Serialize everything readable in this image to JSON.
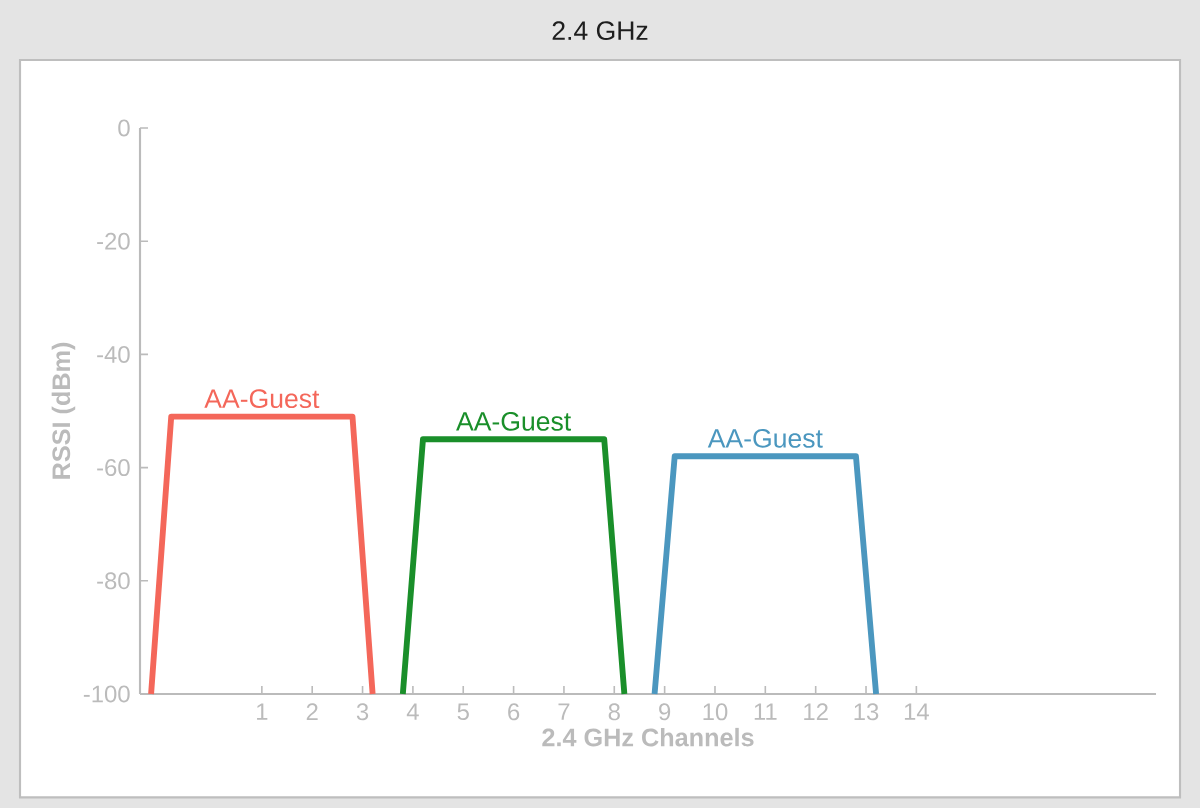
{
  "chart_data": {
    "type": "line",
    "title": "2.4 GHz",
    "xlabel": "2.4 GHz Channels",
    "ylabel": "RSSI (dBm)",
    "xlim": [
      -1.42,
      18.76
    ],
    "ylim": [
      -100,
      0
    ],
    "xticks": [
      1,
      2,
      3,
      4,
      5,
      6,
      7,
      8,
      9,
      10,
      11,
      12,
      13,
      14
    ],
    "yticks": [
      0,
      -20,
      -40,
      -60,
      -80,
      -100
    ],
    "grid": false,
    "legend": false,
    "marker": "none",
    "line_style": "solid",
    "series": [
      {
        "name": "AA-Guest",
        "color": "#f4675a",
        "x": [
          -1.2,
          -0.8,
          2.8,
          3.2
        ],
        "values": [
          -100,
          -51,
          -51,
          -100
        ]
      },
      {
        "name": "AA-Guest",
        "color": "#1a8f2a",
        "x": [
          3.8,
          4.2,
          7.8,
          8.2
        ],
        "values": [
          -100,
          -55,
          -55,
          -100
        ]
      },
      {
        "name": "AA-Guest",
        "color": "#4b97bf",
        "x": [
          8.8,
          9.2,
          12.8,
          13.2
        ],
        "values": [
          -100,
          -58,
          -58,
          -100
        ]
      }
    ]
  }
}
